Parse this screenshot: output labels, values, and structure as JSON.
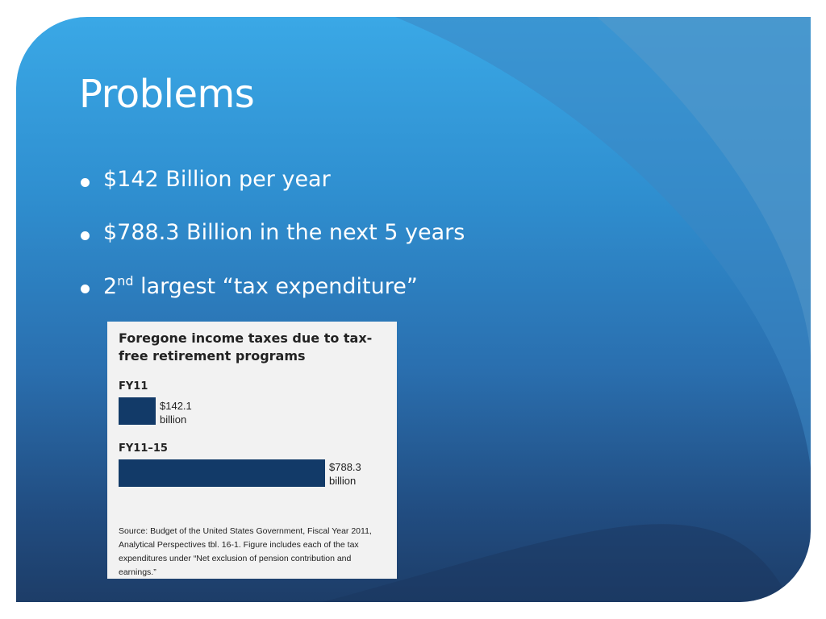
{
  "slide": {
    "title": "Problems",
    "bullets": [
      {
        "text": "$142 Billion per year"
      },
      {
        "text": "$788.3 Billion in the next 5 years"
      },
      {
        "prefix": "2",
        "sup": "nd",
        "text": " largest “tax expenditure”"
      }
    ]
  },
  "figure": {
    "title": "Foregone income taxes due to tax-free retirement programs",
    "source": "Source: Budget of the United States Government, Fiscal Year 2011, Analytical Perspectives tbl. 16-1. Figure includes each of the tax expenditures under “Net exclusion of pension contribution and earnings.”"
  },
  "chart_data": {
    "type": "bar",
    "orientation": "horizontal",
    "title": "Foregone income taxes due to tax-free retirement programs",
    "categories": [
      "FY11",
      "FY11–15"
    ],
    "values": [
      142.1,
      788.3
    ],
    "value_labels": [
      "$142.1 billion",
      "$788.3 billion"
    ],
    "unit": "billion",
    "bar_color": "#123a68"
  },
  "colors": {
    "background_top": "#3aa8e6",
    "background_bottom": "#1d3d68",
    "text": "#ffffff",
    "bar": "#123a68"
  }
}
